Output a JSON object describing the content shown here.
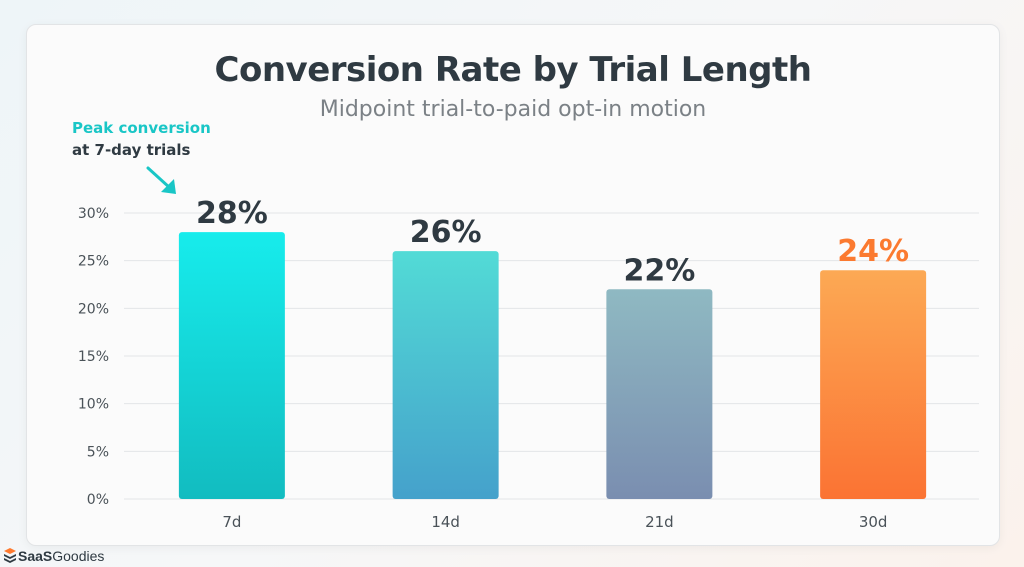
{
  "chart_data": {
    "type": "bar",
    "title": "Conversion Rate by Trial Length",
    "subtitle": "Midpoint trial-to-paid opt-in motion",
    "categories": [
      "7d",
      "14d",
      "21d",
      "30d"
    ],
    "values": [
      28,
      26,
      22,
      24
    ],
    "value_labels": [
      "28%",
      "26%",
      "22%",
      "24%"
    ],
    "y_ticks": [
      "0%",
      "5%",
      "10%",
      "15%",
      "20%",
      "25%",
      "30%"
    ],
    "y_tick_values": [
      0,
      5,
      10,
      15,
      20,
      25,
      30
    ],
    "ylim": [
      0,
      30
    ],
    "grid": true,
    "annotation": {
      "line1": "Peak conversion",
      "line2": "at 7-day trials",
      "target_category": "7d"
    },
    "bar_colors": [
      {
        "top": "#17ecec",
        "bottom": "#12bcc0"
      },
      {
        "top": "#52dbd6",
        "bottom": "#45a1cb"
      },
      {
        "top": "#8fb9c2",
        "bottom": "#7a8eb0"
      },
      {
        "top": "#fca954",
        "bottom": "#fb7333"
      }
    ],
    "label_colors": [
      "#2f3a42",
      "#2f3a42",
      "#2f3a42",
      "#fb7a30"
    ],
    "accent_color": "#19c6c6"
  },
  "brand": {
    "name_part1": "SaaS",
    "name_part2": "Goodies"
  }
}
